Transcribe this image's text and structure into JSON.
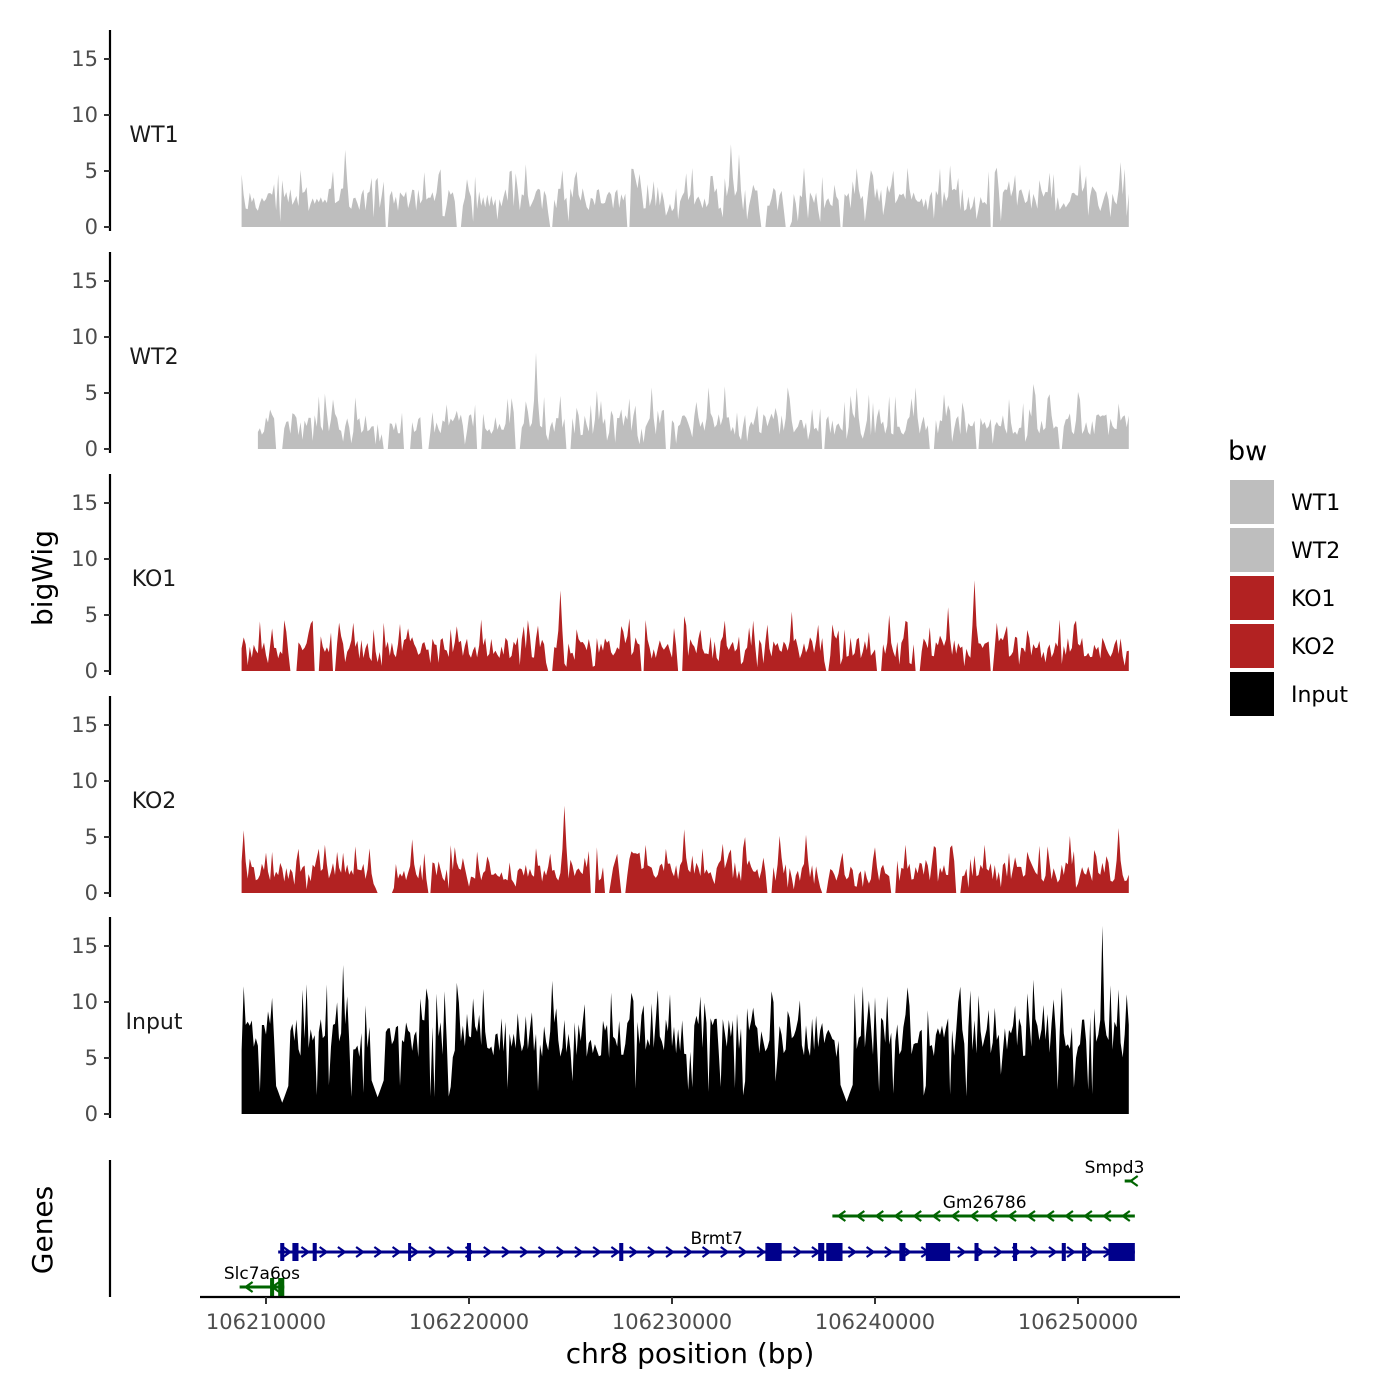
{
  "chart_data": {
    "type": "area",
    "ylabel": "bigWig",
    "xlabel": "chr8 position (bp)",
    "xlim": [
      106206000,
      106255500
    ],
    "ylim": [
      0,
      17
    ],
    "yticks": [
      0,
      5,
      10,
      15
    ],
    "xticks": [
      106210000,
      106220000,
      106230000,
      106240000,
      106250000
    ],
    "track_range": [
      106208800,
      106252500
    ],
    "legend": {
      "title": "bw",
      "entries": [
        {
          "name": "WT1",
          "color": "#bebebe"
        },
        {
          "name": "WT2",
          "color": "#bebebe"
        },
        {
          "name": "KO1",
          "color": "#b22222"
        },
        {
          "name": "KO2",
          "color": "#b22222"
        },
        {
          "name": "Input",
          "color": "#000000"
        }
      ]
    },
    "series": [
      {
        "name": "WT1",
        "color": "#bebebe",
        "base": 1.4,
        "amp": 2.6,
        "peaks": [
          [
            106213900,
            6.9
          ],
          [
            106217800,
            4.9
          ],
          [
            106222800,
            5.6
          ],
          [
            106230700,
            4.8
          ],
          [
            106232900,
            7.4
          ],
          [
            106233300,
            6.5
          ],
          [
            106236500,
            5.3
          ],
          [
            106243700,
            5.5
          ],
          [
            106246000,
            5.3
          ],
          [
            106250100,
            5.6
          ],
          [
            106252100,
            5.8
          ]
        ],
        "gaps": [
          [
            106215900,
            106216000
          ],
          [
            106219400,
            106219600
          ],
          [
            106224000,
            106224100
          ],
          [
            106227800,
            106227900
          ],
          [
            106234400,
            106234600
          ],
          [
            106235600,
            106235800
          ],
          [
            106238300,
            106238400
          ],
          [
            106245700,
            106245800
          ]
        ]
      },
      {
        "name": "WT2",
        "color": "#bebebe",
        "base": 1.2,
        "amp": 2.5,
        "peaks": [
          [
            106221900,
            4.5
          ],
          [
            106223300,
            8.6
          ],
          [
            106226300,
            5.2
          ],
          [
            106229000,
            5.5
          ],
          [
            106231800,
            5.5
          ],
          [
            106232600,
            5.6
          ],
          [
            106235700,
            5.5
          ],
          [
            106239100,
            5.5
          ],
          [
            106242000,
            5.5
          ],
          [
            106247800,
            5.8
          ],
          [
            106250000,
            5.1
          ]
        ],
        "start": 106209600,
        "gaps": [
          [
            106210500,
            106210800
          ],
          [
            106215800,
            106216000
          ],
          [
            106216800,
            106217100
          ],
          [
            106217700,
            106218000
          ],
          [
            106220400,
            106220600
          ],
          [
            106222300,
            106222500
          ],
          [
            106224800,
            106225000
          ],
          [
            106229700,
            106229900
          ],
          [
            106237400,
            106237500
          ],
          [
            106242700,
            106242900
          ],
          [
            106245000,
            106245100
          ],
          [
            106249100,
            106249200
          ]
        ]
      },
      {
        "name": "KO1",
        "color": "#b22222",
        "base": 1.1,
        "amp": 2.4,
        "peaks": [
          [
            106210300,
            3.8
          ],
          [
            106214300,
            4.3
          ],
          [
            106217000,
            3.8
          ],
          [
            106219400,
            4.0
          ],
          [
            106220600,
            4.6
          ],
          [
            106222700,
            4.0
          ],
          [
            106224500,
            7.2
          ],
          [
            106230600,
            4.9
          ],
          [
            106232600,
            4.5
          ],
          [
            106234000,
            4.5
          ],
          [
            106235900,
            5.3
          ],
          [
            106240700,
            5.0
          ],
          [
            106243600,
            5.7
          ],
          [
            106244900,
            8.1
          ],
          [
            106246000,
            4.3
          ],
          [
            106249800,
            4.1
          ]
        ],
        "gaps": [
          [
            106211200,
            106211500
          ],
          [
            106212400,
            106212600
          ],
          [
            106213300,
            106213400
          ],
          [
            106223900,
            106224100
          ],
          [
            106228500,
            106228600
          ],
          [
            106230300,
            106230500
          ],
          [
            106237600,
            106237700
          ],
          [
            106240100,
            106240300
          ],
          [
            106242000,
            106242200
          ],
          [
            106245700,
            106245800
          ]
        ]
      },
      {
        "name": "KO2",
        "color": "#b22222",
        "base": 1.0,
        "amp": 2.2,
        "peaks": [
          [
            106208900,
            5.6
          ],
          [
            106212900,
            4.3
          ],
          [
            106213800,
            3.6
          ],
          [
            106217200,
            4.8
          ],
          [
            106219300,
            4.1
          ],
          [
            106224700,
            7.8
          ],
          [
            106227300,
            3.5
          ],
          [
            106230600,
            5.7
          ],
          [
            106232500,
            4.4
          ],
          [
            106233600,
            5.0
          ],
          [
            106235300,
            5.1
          ],
          [
            106236600,
            5.2
          ],
          [
            106241500,
            4.3
          ],
          [
            106242900,
            4.2
          ],
          [
            106245400,
            4.3
          ],
          [
            106249600,
            5.1
          ],
          [
            106252000,
            5.8
          ]
        ],
        "gaps": [
          [
            106215500,
            106216200
          ],
          [
            106218000,
            106218100
          ],
          [
            106226000,
            106226200
          ],
          [
            106226700,
            106226900
          ],
          [
            106227500,
            106227700
          ],
          [
            106234700,
            106234900
          ],
          [
            106237400,
            106237600
          ],
          [
            106240800,
            106241000
          ],
          [
            106244000,
            106244200
          ]
        ]
      },
      {
        "name": "Input",
        "color": "#000000",
        "base": 5.0,
        "amp": 4.5,
        "peaks": [
          [
            106208900,
            11.4
          ],
          [
            106212000,
            11.6
          ],
          [
            106213800,
            13.3
          ],
          [
            106224100,
            11.9
          ],
          [
            106231400,
            10.5
          ],
          [
            106234000,
            9.5
          ],
          [
            106240600,
            10.0
          ],
          [
            106245100,
            10.6
          ],
          [
            106247800,
            12.0
          ],
          [
            106249200,
            11.3
          ],
          [
            106251200,
            16.8
          ],
          [
            106251600,
            11.5
          ],
          [
            106252400,
            10.7
          ]
        ],
        "dips": [
          [
            106215500,
            1.5
          ],
          [
            106210800,
            1.0
          ],
          [
            106238600,
            1.1
          ]
        ],
        "gaps": []
      }
    ],
    "genes": [
      {
        "name": "Smpd3",
        "strand": "-",
        "color": "#006400",
        "start": 106252300,
        "end": 106252700,
        "exons": [],
        "row": 0,
        "label_x": 106251800
      },
      {
        "name": "Gm26786",
        "strand": "-",
        "color": "#006400",
        "start": 106237900,
        "end": 106252800,
        "exons": [],
        "row": 1,
        "label_x": 106245400
      },
      {
        "name": "Brmt7",
        "strand": "+",
        "color": "#00008b",
        "start": 106210600,
        "end": 106252800,
        "exons": [
          [
            106210700,
            106210900
          ],
          [
            106211300,
            106211600
          ],
          [
            106212300,
            106212500
          ],
          [
            106217000,
            106217100
          ],
          [
            106219900,
            106220100
          ],
          [
            106227400,
            106227600
          ],
          [
            106234600,
            106235400
          ],
          [
            106237200,
            106237500
          ],
          [
            106237600,
            106238400
          ],
          [
            106241200,
            106241500
          ],
          [
            106242500,
            106243700
          ],
          [
            106244900,
            106245100
          ],
          [
            106246800,
            106247000
          ],
          [
            106249200,
            106249400
          ],
          [
            106250200,
            106250400
          ],
          [
            106251500,
            106252800
          ]
        ],
        "row": 2,
        "label_x": 106232200
      },
      {
        "name": "Slc7a6os",
        "strand": "-",
        "color": "#006400",
        "start": 106208700,
        "end": 106210900,
        "exons": [
          [
            106210200,
            106210400
          ],
          [
            106210600,
            106210900
          ]
        ],
        "row": 3,
        "label_x": 106209800
      }
    ],
    "genes_label": "Genes"
  }
}
